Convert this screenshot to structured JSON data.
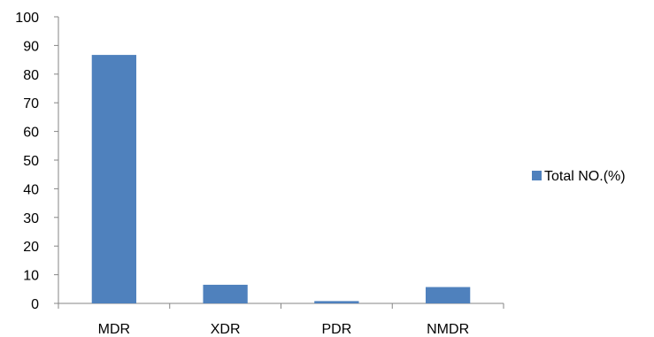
{
  "chart_data": {
    "type": "bar",
    "title": "",
    "xlabel": "",
    "ylabel": "",
    "categories": [
      "MDR",
      "XDR",
      "PDR",
      "NMDR"
    ],
    "series": [
      {
        "name": "Total NO.(%)",
        "values": [
          86.7,
          6.5,
          0.8,
          5.7
        ],
        "color": "#4F81BD"
      }
    ],
    "ylim": [
      0,
      100
    ],
    "yticks": [
      0,
      10,
      20,
      30,
      40,
      50,
      60,
      70,
      80,
      90,
      100
    ],
    "grid": false,
    "legend_position": "right"
  }
}
